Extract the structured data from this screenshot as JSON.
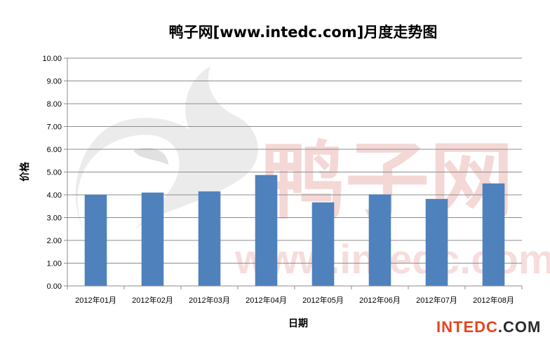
{
  "chart_data": {
    "type": "bar",
    "title": "鸭子网[www.intedc.com]月度走势图",
    "xlabel": "日期",
    "ylabel": "价格",
    "categories": [
      "2012年01月",
      "2012年02月",
      "2012年03月",
      "2012年04月",
      "2012年05月",
      "2012年06月",
      "2012年07月",
      "2012年08月"
    ],
    "values": [
      4.01,
      4.1,
      4.15,
      4.87,
      3.67,
      4.02,
      3.82,
      4.5
    ],
    "ylim": [
      0,
      10
    ],
    "yticks": [
      "0.00",
      "1.00",
      "2.00",
      "3.00",
      "4.00",
      "5.00",
      "6.00",
      "7.00",
      "8.00",
      "9.00",
      "10.00"
    ],
    "grid": true,
    "bar_color": "#4f81bd"
  },
  "watermark": {
    "text_cn": "鸭子网",
    "text_url": "www.intedc.com"
  },
  "brand": {
    "main": "INTEDC",
    "suffix": ".COM",
    "main_color": "#e4451c",
    "suffix_color": "#2b2b2b"
  }
}
